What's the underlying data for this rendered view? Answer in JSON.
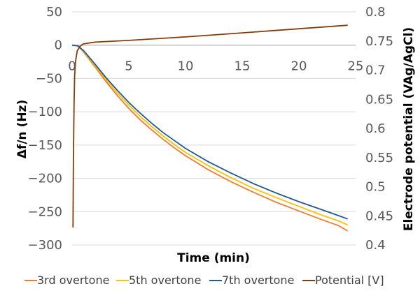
{
  "chart_data": {
    "type": "line",
    "xlabel": "Time (min)",
    "ylabel": "Δf/n (Hz)",
    "y2label": "Electrode potential (VAg/AgCl)",
    "xlim": [
      0,
      25
    ],
    "ylim": [
      -300,
      50
    ],
    "y2lim": [
      0.4,
      0.8
    ],
    "x_ticks": [
      "0",
      "5",
      "10",
      "15",
      "20",
      "25"
    ],
    "y_ticks": [
      "50",
      "0",
      "-50",
      "-100",
      "-150",
      "-200",
      "-250",
      "-300"
    ],
    "y2_ticks": [
      "0.8",
      "0.75",
      "0.7",
      "0.65",
      "0.6",
      "0.55",
      "0.5",
      "0.45",
      "0.4"
    ],
    "grid": "horizontal",
    "legend_position": "bottom",
    "series": [
      {
        "name": "3rd overtone",
        "color": "#ED7D31",
        "axis": "left",
        "points": [
          [
            0,
            0
          ],
          [
            0.5,
            -1
          ],
          [
            1,
            -10
          ],
          [
            2,
            -32
          ],
          [
            3,
            -55
          ],
          [
            4,
            -76
          ],
          [
            5,
            -95
          ],
          [
            6,
            -112
          ],
          [
            7,
            -127
          ],
          [
            8,
            -141
          ],
          [
            9,
            -154
          ],
          [
            10,
            -166
          ],
          [
            12,
            -187
          ],
          [
            14,
            -205
          ],
          [
            16,
            -221
          ],
          [
            18,
            -236
          ],
          [
            20,
            -249
          ],
          [
            22,
            -262
          ],
          [
            23.5,
            -271
          ],
          [
            24.3,
            -279
          ]
        ]
      },
      {
        "name": "5th overtone",
        "color": "#FFC000",
        "axis": "left",
        "points": [
          [
            0,
            0
          ],
          [
            0.5,
            -1
          ],
          [
            1,
            -9
          ],
          [
            2,
            -30
          ],
          [
            3,
            -52
          ],
          [
            4,
            -72
          ],
          [
            5,
            -90
          ],
          [
            6,
            -107
          ],
          [
            7,
            -122
          ],
          [
            8,
            -136
          ],
          [
            9,
            -149
          ],
          [
            10,
            -161
          ],
          [
            12,
            -181
          ],
          [
            14,
            -199
          ],
          [
            16,
            -215
          ],
          [
            18,
            -229
          ],
          [
            20,
            -242
          ],
          [
            22,
            -255
          ],
          [
            23.5,
            -264
          ],
          [
            24.3,
            -270
          ]
        ]
      },
      {
        "name": "7th overtone",
        "color": "#1F5A96",
        "axis": "left",
        "points": [
          [
            0,
            0
          ],
          [
            0.5,
            -1
          ],
          [
            1,
            -8
          ],
          [
            2,
            -28
          ],
          [
            3,
            -49
          ],
          [
            4,
            -68
          ],
          [
            5,
            -86
          ],
          [
            6,
            -102
          ],
          [
            7,
            -117
          ],
          [
            8,
            -131
          ],
          [
            9,
            -143
          ],
          [
            10,
            -155
          ],
          [
            12,
            -175
          ],
          [
            14,
            -192
          ],
          [
            16,
            -208
          ],
          [
            18,
            -222
          ],
          [
            20,
            -235
          ],
          [
            22,
            -247
          ],
          [
            23.5,
            -256
          ],
          [
            24.3,
            -261
          ]
        ]
      },
      {
        "name": "Potential [V]",
        "color": "#843C0C",
        "axis": "right",
        "points": [
          [
            0.08,
            0.43
          ],
          [
            0.12,
            0.55
          ],
          [
            0.17,
            0.64
          ],
          [
            0.22,
            0.69
          ],
          [
            0.3,
            0.715
          ],
          [
            0.45,
            0.733
          ],
          [
            0.7,
            0.741
          ],
          [
            1,
            0.745
          ],
          [
            2,
            0.748
          ],
          [
            5,
            0.751
          ],
          [
            10,
            0.757
          ],
          [
            15,
            0.764
          ],
          [
            20,
            0.771
          ],
          [
            24.3,
            0.777
          ]
        ]
      }
    ]
  }
}
